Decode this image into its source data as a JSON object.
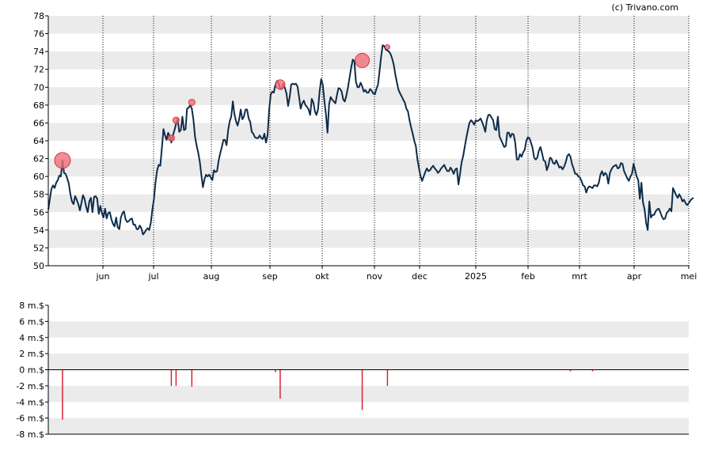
{
  "watermark": "(c) Trivano.com",
  "colors": {
    "band": "#ebebeb",
    "price_line": "#0d2c4a",
    "marker": "#f0707a",
    "marker_stroke": "#e0303a",
    "volume_bar": "#dd2233",
    "axis": "#000000"
  },
  "chart_data": [
    {
      "type": "line",
      "title": "",
      "xlabel": "",
      "ylabel": "",
      "ylim": [
        50,
        78
      ],
      "y_ticks": [
        "50",
        "52",
        "54",
        "56",
        "58",
        "60",
        "62",
        "64",
        "66",
        "68",
        "70",
        "72",
        "74",
        "76",
        "78"
      ],
      "x_ticks": [
        "jun",
        "jul",
        "aug",
        "sep",
        "okt",
        "nov",
        "dec",
        "2025",
        "feb",
        "mrt",
        "apr",
        "mei"
      ],
      "grid": "horizontal bands, dotted vertical month lines",
      "series": [
        {
          "values": [
            56.3,
            57.5,
            58.6,
            59.0,
            58.7,
            59.3,
            59.6,
            60.1,
            60.0,
            61.8,
            60.4,
            60.3,
            59.8,
            59.2,
            58.0,
            57.2,
            56.9,
            57.8,
            57.4,
            56.9,
            56.2,
            57.0,
            57.9,
            57.5,
            56.6,
            56.0,
            57.2,
            57.6,
            56.0,
            57.7,
            57.8,
            57.5,
            55.8,
            56.7,
            55.9,
            55.4,
            56.4,
            55.3,
            55.9,
            56.0,
            55.2,
            54.7,
            54.4,
            55.4,
            54.3,
            54.1,
            55.4,
            55.9,
            56.1,
            55.2,
            54.9,
            55.0,
            55.2,
            55.3,
            54.6,
            54.6,
            54.1,
            54.1,
            54.5,
            54.2,
            53.5,
            53.7,
            54.0,
            54.2,
            54.0,
            54.8,
            56.3,
            57.5,
            59.4,
            60.7,
            61.3,
            61.2,
            63.2,
            65.3,
            64.6,
            64.1,
            64.9,
            64.5,
            63.8,
            64.6,
            65.2,
            65.9,
            66.5,
            65.0,
            65.2,
            66.7,
            65.2,
            65.3,
            67.6,
            67.7,
            68.0,
            67.6,
            66.4,
            64.5,
            63.5,
            62.7,
            61.7,
            60.2,
            58.8,
            59.7,
            60.2,
            60.0,
            60.2,
            59.9,
            59.6,
            60.7,
            60.5,
            60.6,
            61.8,
            62.6,
            63.3,
            64.1,
            64.1,
            63.5,
            65.2,
            66.2,
            66.7,
            68.4,
            67.0,
            66.2,
            65.7,
            66.4,
            67.5,
            66.4,
            66.7,
            67.5,
            67.5,
            66.5,
            66.1,
            65.0,
            64.8,
            64.4,
            64.3,
            64.3,
            64.6,
            64.3,
            64.2,
            64.8,
            63.8,
            64.6,
            67.5,
            69.2,
            69.5,
            69.4,
            70.3,
            70.7,
            70.5,
            69.8,
            69.8,
            70.4,
            69.9,
            69.3,
            67.9,
            68.9,
            70.3,
            70.4,
            70.3,
            70.4,
            70.1,
            68.9,
            67.6,
            68.2,
            68.5,
            68.0,
            67.8,
            67.5,
            66.9,
            68.7,
            68.3,
            67.3,
            66.9,
            67.5,
            69.5,
            70.9,
            70.3,
            68.5,
            67.0,
            64.9,
            68.1,
            68.9,
            68.6,
            68.4,
            68.2,
            69.1,
            69.9,
            69.8,
            69.5,
            68.6,
            68.4,
            69.1,
            70.0,
            71.1,
            72.2,
            73.1,
            72.9,
            70.6,
            70.0,
            70.0,
            70.5,
            70.1,
            69.5,
            69.7,
            69.4,
            69.4,
            69.8,
            69.6,
            69.3,
            69.2,
            69.8,
            70.3,
            71.8,
            73.4,
            74.7,
            74.6,
            74.2,
            74.1,
            74.0,
            73.7,
            73.2,
            72.5,
            71.4,
            70.5,
            69.7,
            69.3,
            69.0,
            68.6,
            68.3,
            67.6,
            67.3,
            66.3,
            65.5,
            64.8,
            64.0,
            63.4,
            61.9,
            60.9,
            60.0,
            59.5,
            60.0,
            60.5,
            60.9,
            60.6,
            60.7,
            61.0,
            61.2,
            60.9,
            60.7,
            60.4,
            60.6,
            60.9,
            61.1,
            61.3,
            60.9,
            60.6,
            60.6,
            61.0,
            60.7,
            60.3,
            60.8,
            60.9,
            59.1,
            60.3,
            61.6,
            62.3,
            63.3,
            64.3,
            65.2,
            66.0,
            66.3,
            66.1,
            65.8,
            66.3,
            66.2,
            66.3,
            66.5,
            66.1,
            65.6,
            65.0,
            66.3,
            66.9,
            66.9,
            66.6,
            66.3,
            65.3,
            65.2,
            66.7,
            64.5,
            64.1,
            63.7,
            63.3,
            63.4,
            64.9,
            64.9,
            64.4,
            64.8,
            64.7,
            63.8,
            61.9,
            61.9,
            62.5,
            62.2,
            62.7,
            63.0,
            64.0,
            64.4,
            64.3,
            63.8,
            63.2,
            62.1,
            61.9,
            62.1,
            62.9,
            63.3,
            62.6,
            61.8,
            61.7,
            60.7,
            61.2,
            62.1,
            62.0,
            61.5,
            61.4,
            61.8,
            61.4,
            61.0,
            61.1,
            60.8,
            61.1,
            61.6,
            62.3,
            62.5,
            62.2,
            61.4,
            60.9,
            60.3,
            60.3,
            60.0,
            59.9,
            59.5,
            59.0,
            58.9,
            58.2,
            58.7,
            58.9,
            58.8,
            58.7,
            59.0,
            59.0,
            58.9,
            59.3,
            60.2,
            60.6,
            60.1,
            60.4,
            60.2,
            59.2,
            60.4,
            60.8,
            61.1,
            61.2,
            61.3,
            60.9,
            61.0,
            61.5,
            61.4,
            60.6,
            60.2,
            59.8,
            59.5,
            60.0,
            60.3,
            61.4,
            60.7,
            60.0,
            59.6,
            57.5,
            59.3,
            57.1,
            56.3,
            54.8,
            54.0,
            57.2,
            55.4,
            55.7,
            55.7,
            56.1,
            56.3,
            56.4,
            56.0,
            55.5,
            55.2,
            55.3,
            55.9,
            56.1,
            56.4,
            56.1,
            58.7,
            58.3,
            57.9,
            57.6,
            58.0,
            57.7,
            57.2,
            57.4,
            57.0,
            56.8,
            57.0,
            57.3,
            57.5,
            57.6
          ],
          "x_range": [
            0,
            406
          ]
        }
      ],
      "markers": [
        {
          "x": 9,
          "y": 61.8,
          "size": 10
        },
        {
          "x": 78,
          "y": 64.3,
          "size": 4
        },
        {
          "x": 81,
          "y": 66.3,
          "size": 4
        },
        {
          "x": 91,
          "y": 68.3,
          "size": 4
        },
        {
          "x": 147,
          "y": 70.3,
          "size": 6
        },
        {
          "x": 199,
          "y": 73.0,
          "size": 9
        },
        {
          "x": 215,
          "y": 74.5,
          "size": 3
        }
      ]
    },
    {
      "type": "bar",
      "title": "",
      "xlabel": "",
      "ylabel": "",
      "ylim": [
        -8,
        8
      ],
      "y_ticks": [
        "-8 m.$",
        "-6 m.$",
        "-4 m.$",
        "-2 m.$",
        "0 m.$",
        "2 m.$",
        "4 m.$",
        "6 m.$",
        "8 m.$"
      ],
      "values": [
        {
          "x": 9,
          "y": -6.2
        },
        {
          "x": 78,
          "y": -2.0
        },
        {
          "x": 81,
          "y": -2.0
        },
        {
          "x": 91,
          "y": -2.1
        },
        {
          "x": 144,
          "y": -0.3
        },
        {
          "x": 147,
          "y": -3.6
        },
        {
          "x": 199,
          "y": -5.0
        },
        {
          "x": 215,
          "y": -2.0
        },
        {
          "x": 331,
          "y": -0.2
        },
        {
          "x": 345,
          "y": -0.2
        }
      ]
    }
  ]
}
